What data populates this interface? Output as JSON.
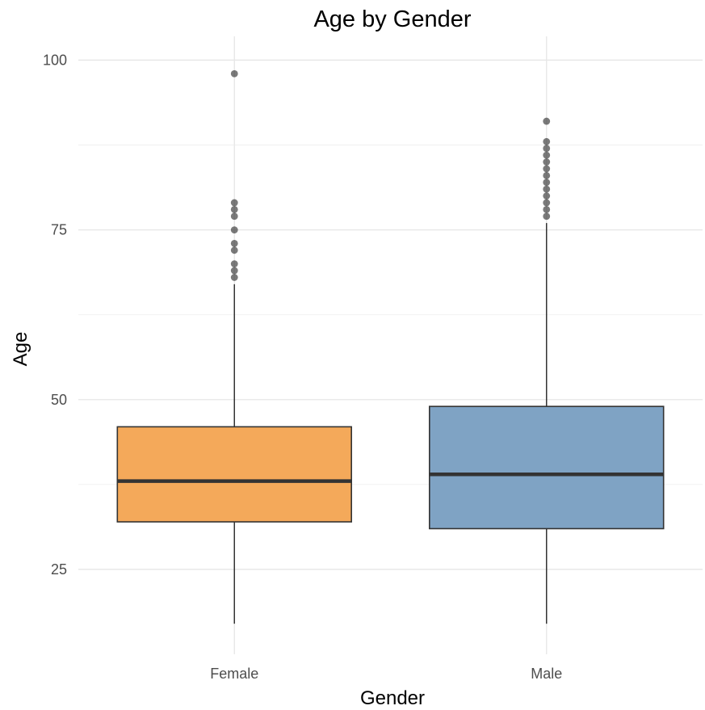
{
  "chart_data": {
    "type": "boxplot",
    "title": "Age by Gender",
    "xlabel": "Gender",
    "ylabel": "Age",
    "ylim": [
      12.5,
      103.5
    ],
    "y_ticks": [
      25,
      50,
      75,
      100
    ],
    "y_minor_ticks": [
      37.5,
      62.5,
      87.5
    ],
    "grid": true,
    "legend": "none",
    "categories": [
      "Female",
      "Male"
    ],
    "series": [
      {
        "category": "Female",
        "color": "#f4a95a",
        "whisker_low": 17,
        "q1": 32,
        "median": 38,
        "q3": 46,
        "whisker_high": 67,
        "outliers": [
          68,
          69,
          70,
          72,
          73,
          75,
          77,
          78,
          79,
          98
        ]
      },
      {
        "category": "Male",
        "color": "#7fa3c4",
        "whisker_low": 17,
        "q1": 31,
        "median": 39,
        "q3": 49,
        "whisker_high": 76,
        "outliers": [
          77,
          78,
          79,
          80,
          81,
          82,
          83,
          84,
          85,
          86,
          87,
          88,
          91
        ]
      }
    ]
  }
}
